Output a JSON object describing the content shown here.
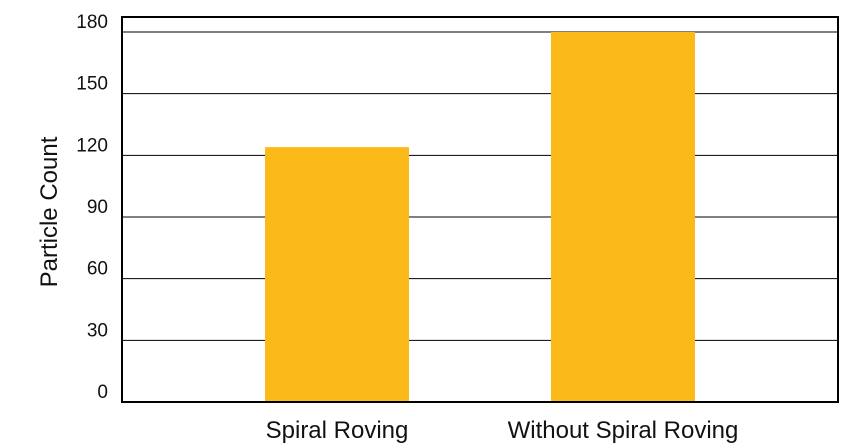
{
  "chart_data": {
    "type": "bar",
    "title": "",
    "xlabel": "",
    "ylabel": "Particle Count",
    "categories": [
      "Spiral Roving",
      "Without Spiral Roving"
    ],
    "values": [
      124,
      180
    ],
    "ylim": [
      0,
      180
    ],
    "yticks": [
      "0",
      "30",
      "60",
      "90",
      "120",
      "150",
      "180"
    ],
    "grid": "horizontal",
    "legend": "none",
    "colors": {
      "bar": "#FBB91A",
      "grid": "#000000",
      "text": "#111111"
    }
  }
}
